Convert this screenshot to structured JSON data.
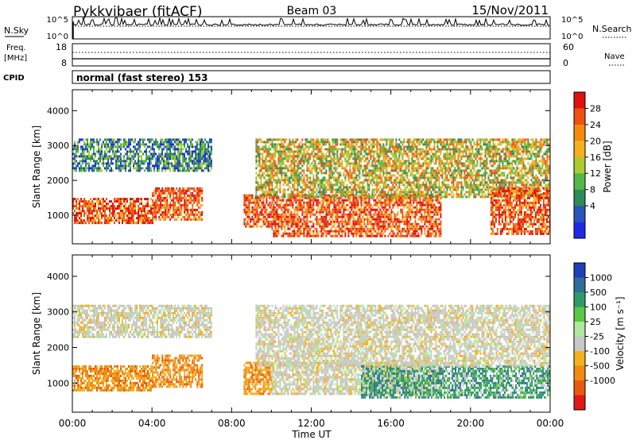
{
  "header": {
    "site": "Pykkvibaer (fitACF)",
    "beam": "Beam 03",
    "date": "15/Nov/2011"
  },
  "summary_panels": {
    "nsky": {
      "label": "N.Sky",
      "left_ticks": [
        "10^5",
        "10^0"
      ],
      "right_ticks": [
        "10^5",
        "10^0"
      ],
      "right_label": "N.Search"
    },
    "freq": {
      "label_line1": "Freq.",
      "label_line2": "[MHz]",
      "left_ticks": [
        "18",
        "8"
      ],
      "right_ticks": [
        "60",
        "0"
      ],
      "right_label": "Nave"
    },
    "cpid": {
      "label": "CPID",
      "text": "normal (fast stereo) 153"
    }
  },
  "chart_data": [
    {
      "type": "heatmap",
      "title": "",
      "variable": "Power",
      "xlabel": "",
      "ylabel": "Slant Range [km]",
      "xlim": [
        0,
        24
      ],
      "ylim": [
        180,
        4600
      ],
      "y_ticks": [
        1000,
        2000,
        3000,
        4000
      ],
      "colorbar": {
        "label": "Power [dB]",
        "ticks": [
          "4",
          "8",
          "12",
          "16",
          "20",
          "24",
          "28"
        ],
        "colors": [
          "#1e2be6",
          "#2a55b8",
          "#2f8a55",
          "#52b848",
          "#aacc30",
          "#f5b020",
          "#f58a10",
          "#ee5010",
          "#e01010"
        ]
      },
      "echo_regions": [
        {
          "x": [
            0.0,
            4.0
          ],
          "y": [
            800,
            1500
          ],
          "level": "high"
        },
        {
          "x": [
            4.0,
            6.5
          ],
          "y": [
            900,
            1800
          ],
          "level": "high"
        },
        {
          "x": [
            0.0,
            7.0
          ],
          "y": [
            2300,
            3200
          ],
          "level": "low"
        },
        {
          "x": [
            8.6,
            10.0
          ],
          "y": [
            700,
            1600
          ],
          "level": "high"
        },
        {
          "x": [
            10.0,
            18.5
          ],
          "y": [
            400,
            1600
          ],
          "level": "high"
        },
        {
          "x": [
            9.2,
            24.0
          ],
          "y": [
            1500,
            3200
          ],
          "level": "mid"
        },
        {
          "x": [
            21.0,
            24.0
          ],
          "y": [
            500,
            1800
          ],
          "level": "high"
        }
      ]
    },
    {
      "type": "heatmap",
      "title": "",
      "variable": "Velocity",
      "xlabel": "Time UT",
      "ylabel": "Slant Range [km]",
      "xlim": [
        0,
        24
      ],
      "ylim": [
        180,
        4600
      ],
      "x_ticks": [
        "00:00",
        "04:00",
        "08:00",
        "12:00",
        "16:00",
        "20:00",
        "00:00"
      ],
      "y_ticks": [
        1000,
        2000,
        3000,
        4000
      ],
      "colorbar": {
        "label": "Velocity [m s⁻¹]",
        "ticks": [
          "1000",
          "500",
          "100",
          "25",
          "-25",
          "-100",
          "-500",
          "-1000"
        ],
        "colors": [
          "#1f3fb8",
          "#2e6e98",
          "#2e9a68",
          "#5ac846",
          "#b0e8a0",
          "#c8c8c8",
          "#f4b020",
          "#f08a10",
          "#e85a10",
          "#e01818"
        ]
      },
      "echo_regions": [
        {
          "x": [
            0.0,
            4.0
          ],
          "y": [
            800,
            1500
          ],
          "level": "toward"
        },
        {
          "x": [
            4.0,
            6.5
          ],
          "y": [
            900,
            1800
          ],
          "level": "toward"
        },
        {
          "x": [
            0.0,
            7.0
          ],
          "y": [
            2300,
            3200
          ],
          "level": "ground"
        },
        {
          "x": [
            8.6,
            10.0
          ],
          "y": [
            700,
            1600
          ],
          "level": "toward"
        },
        {
          "x": [
            10.0,
            18.5
          ],
          "y": [
            700,
            1600
          ],
          "level": "ground"
        },
        {
          "x": [
            14.5,
            24.0
          ],
          "y": [
            600,
            1500
          ],
          "level": "away"
        },
        {
          "x": [
            9.2,
            24.0
          ],
          "y": [
            1500,
            3200
          ],
          "level": "ground"
        }
      ]
    }
  ]
}
